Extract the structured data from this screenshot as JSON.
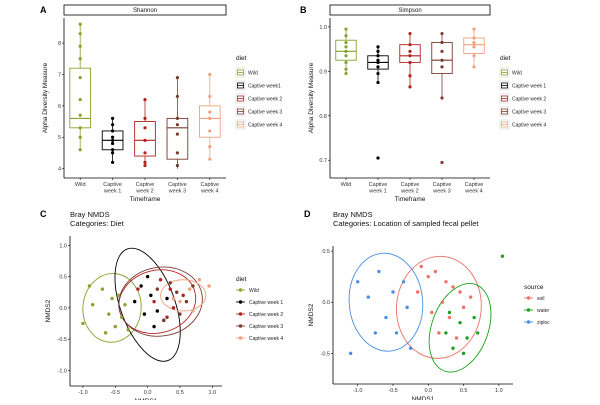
{
  "panels": {
    "A": "A",
    "B": "B",
    "C": "C",
    "D": "D"
  },
  "colors": {
    "wild": "#86a32e",
    "cw1": "#000000",
    "cw2": "#b22222",
    "cw3": "#7a3b2e",
    "cw4": "#f0a07e",
    "soil": "#f07068",
    "water": "#1aa31a",
    "ziploc": "#4a90e2"
  },
  "chart_data": [
    {
      "id": "A",
      "type": "box",
      "strip": "Shannon",
      "ylabel": "Alpha Diversity Measure",
      "xlabel": "Timeframe",
      "ylim": [
        3.7,
        8.8
      ],
      "yticks": [
        "4",
        "5",
        "6",
        "7",
        "8"
      ],
      "categories": [
        "Wild",
        "Captive week 1",
        "Captive week 2",
        "Captive week 3",
        "Captive week 4"
      ],
      "boxes": [
        {
          "q1": 5.3,
          "med": 5.6,
          "q3": 7.2,
          "lo": 4.6,
          "hi": 8.6,
          "pts": [
            8.6,
            8.3,
            7.9,
            7.5,
            6.9,
            6.2,
            5.7,
            5.3,
            5.0,
            4.6
          ]
        },
        {
          "q1": 4.6,
          "med": 4.9,
          "q3": 5.2,
          "lo": 4.2,
          "hi": 5.6,
          "pts": [
            5.6,
            5.4,
            5.2,
            5.0,
            4.9,
            4.8,
            4.6,
            4.5,
            4.2
          ]
        },
        {
          "q1": 4.4,
          "med": 4.9,
          "q3": 5.5,
          "lo": 4.1,
          "hi": 6.2,
          "pts": [
            6.2,
            5.6,
            5.3,
            4.9,
            4.5,
            4.2,
            4.1
          ]
        },
        {
          "q1": 4.3,
          "med": 5.3,
          "q3": 5.6,
          "lo": 4.0,
          "hi": 6.9,
          "pts": [
            6.9,
            6.3,
            5.6,
            5.4,
            5.1,
            4.5,
            4.1
          ]
        },
        {
          "q1": 5.0,
          "med": 5.6,
          "q3": 6.0,
          "lo": 4.3,
          "hi": 7.0,
          "pts": [
            7.0,
            6.3,
            5.8,
            5.6,
            5.2,
            4.7,
            4.3
          ]
        }
      ]
    },
    {
      "id": "B",
      "type": "box",
      "strip": "Simpson",
      "ylabel": "Alpha Diversity Measure",
      "xlabel": "Timeframe",
      "ylim": [
        0.66,
        1.02
      ],
      "yticks": [
        "0.7",
        "0.8",
        "0.9",
        "1.0"
      ],
      "categories": [
        "Wild",
        "Captive week 1",
        "Captive week 2",
        "Captive week 3",
        "Captive week 4"
      ],
      "boxes": [
        {
          "q1": 0.925,
          "med": 0.945,
          "q3": 0.97,
          "lo": 0.895,
          "hi": 0.995,
          "pts": [
            0.995,
            0.98,
            0.965,
            0.955,
            0.945,
            0.935,
            0.92,
            0.905,
            0.895
          ]
        },
        {
          "q1": 0.905,
          "med": 0.92,
          "q3": 0.935,
          "lo": 0.875,
          "hi": 0.955,
          "pts": [
            0.955,
            0.945,
            0.935,
            0.925,
            0.92,
            0.91,
            0.895,
            0.875,
            0.705
          ]
        },
        {
          "q1": 0.92,
          "med": 0.935,
          "q3": 0.96,
          "lo": 0.865,
          "hi": 0.985,
          "pts": [
            0.985,
            0.96,
            0.945,
            0.935,
            0.92,
            0.89,
            0.865
          ]
        },
        {
          "q1": 0.895,
          "med": 0.925,
          "q3": 0.965,
          "lo": 0.84,
          "hi": 0.985,
          "pts": [
            0.985,
            0.965,
            0.945,
            0.925,
            0.91,
            0.84,
            0.695
          ]
        },
        {
          "q1": 0.94,
          "med": 0.96,
          "q3": 0.975,
          "lo": 0.91,
          "hi": 0.995,
          "pts": [
            0.995,
            0.975,
            0.965,
            0.955,
            0.935,
            0.91
          ]
        }
      ]
    },
    {
      "id": "C",
      "type": "scatter",
      "title": "Bray NMDS",
      "subtitle": "Categories: Diet",
      "xlabel": "NMDS1",
      "ylabel": "NMDS2",
      "xlim": [
        -1.2,
        1.15
      ],
      "ylim": [
        -1.25,
        1.15
      ],
      "xticks": [
        "-1.0",
        "-0.5",
        "0.0",
        "0.5",
        "1.0"
      ],
      "yticks": [
        "-1.0",
        "-0.5",
        "0.0",
        "0.5",
        "1.0"
      ],
      "legend_title": "diet",
      "series": [
        {
          "name": "Wild",
          "color": "wild",
          "ellipse": {
            "cx": -0.55,
            "cy": 0.0,
            "rx": 0.45,
            "ry": 0.55,
            "rot": 5
          },
          "points": [
            [
              -1.0,
              -0.25
            ],
            [
              -0.85,
              0.05
            ],
            [
              -0.7,
              0.3
            ],
            [
              -0.6,
              -0.1
            ],
            [
              -0.55,
              0.15
            ],
            [
              -0.5,
              -0.3
            ],
            [
              -0.45,
              0.2
            ],
            [
              -0.4,
              -0.15
            ],
            [
              -0.35,
              0.05
            ],
            [
              -0.3,
              -0.35
            ],
            [
              -0.9,
              0.35
            ],
            [
              -0.65,
              -0.4
            ]
          ]
        },
        {
          "name": "Captive week 1",
          "color": "cw1",
          "ellipse": {
            "cx": 0.0,
            "cy": 0.05,
            "rx": 0.42,
            "ry": 0.95,
            "rot": -20
          },
          "points": [
            [
              -0.1,
              0.35
            ],
            [
              0.05,
              0.2
            ],
            [
              0.15,
              -0.05
            ],
            [
              0.25,
              -0.2
            ],
            [
              0.0,
              0.5
            ],
            [
              -0.2,
              0.1
            ],
            [
              0.1,
              -0.3
            ],
            [
              0.3,
              0.15
            ],
            [
              -0.05,
              -0.1
            ]
          ]
        },
        {
          "name": "Captive week 2",
          "color": "cw2",
          "ellipse": {
            "cx": 0.15,
            "cy": 0.1,
            "rx": 0.6,
            "ry": 0.5,
            "rot": -15
          },
          "points": [
            [
              0.2,
              0.45
            ],
            [
              0.35,
              0.3
            ],
            [
              0.4,
              0.0
            ],
            [
              0.55,
              0.2
            ],
            [
              0.1,
              0.1
            ],
            [
              0.3,
              -0.15
            ],
            [
              -0.15,
              0.3
            ]
          ]
        },
        {
          "name": "Captive week 3",
          "color": "cw3",
          "ellipse": {
            "cx": 0.2,
            "cy": 0.1,
            "rx": 0.65,
            "ry": 0.55,
            "rot": -10
          },
          "points": [
            [
              0.45,
              0.25
            ],
            [
              0.6,
              0.1
            ],
            [
              0.25,
              -0.2
            ],
            [
              0.5,
              -0.1
            ],
            [
              0.35,
              0.4
            ],
            [
              0.15,
              0.3
            ],
            [
              0.7,
              0.35
            ]
          ]
        },
        {
          "name": "Captive week 4",
          "color": "cw4",
          "ellipse": {
            "cx": 0.55,
            "cy": 0.2,
            "rx": 0.35,
            "ry": 0.25,
            "rot": 0
          },
          "points": [
            [
              0.8,
              0.45
            ],
            [
              0.95,
              0.35
            ],
            [
              0.65,
              0.3
            ],
            [
              0.5,
              0.1
            ],
            [
              0.7,
              -0.05
            ],
            [
              0.4,
              0.15
            ]
          ]
        }
      ]
    },
    {
      "id": "D",
      "type": "scatter",
      "title": "Bray NMDS",
      "subtitle": "Categories: Location of sampled fecal pellet",
      "xlabel": "NMDS1",
      "ylabel": "NMDS2",
      "xlim": [
        -1.35,
        1.2
      ],
      "ylim": [
        -0.8,
        0.55
      ],
      "xticks": [
        "-1.0",
        "-0.5",
        "0.0",
        "0.5",
        "1.0"
      ],
      "yticks": [
        "-0.5",
        "0.0",
        "0.5"
      ],
      "legend_title": "source",
      "series": [
        {
          "name": "soil",
          "color": "soil",
          "ellipse": {
            "cx": 0.15,
            "cy": -0.05,
            "rx": 0.6,
            "ry": 0.5,
            "rot": 5
          },
          "points": [
            [
              -0.1,
              0.35
            ],
            [
              0.0,
              0.25
            ],
            [
              0.1,
              0.3
            ],
            [
              0.25,
              0.2
            ],
            [
              0.35,
              0.15
            ],
            [
              0.45,
              0.1
            ],
            [
              0.2,
              0.0
            ],
            [
              0.05,
              -0.1
            ],
            [
              0.3,
              -0.15
            ],
            [
              0.5,
              -0.05
            ],
            [
              0.6,
              0.05
            ],
            [
              0.15,
              -0.3
            ],
            [
              0.4,
              -0.35
            ],
            [
              -0.15,
              0.1
            ]
          ]
        },
        {
          "name": "water",
          "color": "water",
          "ellipse": {
            "cx": 0.45,
            "cy": -0.25,
            "rx": 0.4,
            "ry": 0.45,
            "rot": 20
          },
          "points": [
            [
              0.3,
              -0.1
            ],
            [
              0.45,
              -0.2
            ],
            [
              0.55,
              -0.35
            ],
            [
              0.65,
              -0.15
            ],
            [
              0.35,
              -0.45
            ],
            [
              0.5,
              -0.5
            ],
            [
              0.7,
              -0.3
            ],
            [
              0.25,
              -0.3
            ],
            [
              1.05,
              0.45
            ]
          ]
        },
        {
          "name": "ziploc",
          "color": "ziploc",
          "ellipse": {
            "cx": -0.6,
            "cy": 0.0,
            "rx": 0.52,
            "ry": 0.48,
            "rot": -5
          },
          "points": [
            [
              -1.0,
              0.2
            ],
            [
              -0.85,
              0.05
            ],
            [
              -0.7,
              0.3
            ],
            [
              -0.6,
              -0.15
            ],
            [
              -0.5,
              0.1
            ],
            [
              -0.45,
              -0.3
            ],
            [
              -0.35,
              0.2
            ],
            [
              -0.3,
              -0.05
            ],
            [
              -0.25,
              -0.45
            ],
            [
              -1.1,
              -0.5
            ],
            [
              -0.75,
              -0.3
            ]
          ]
        }
      ]
    }
  ],
  "legends": {
    "diet_title": "diet",
    "diet_items_A": [
      "Wild",
      "Captive week1",
      "Captive week 2",
      "Captive week 3",
      "Captive week 4"
    ],
    "diet_items_B": [
      "Wild",
      "Captive week 1",
      "Captive week 2",
      "Captive week 3",
      "Captive week 4"
    ]
  }
}
